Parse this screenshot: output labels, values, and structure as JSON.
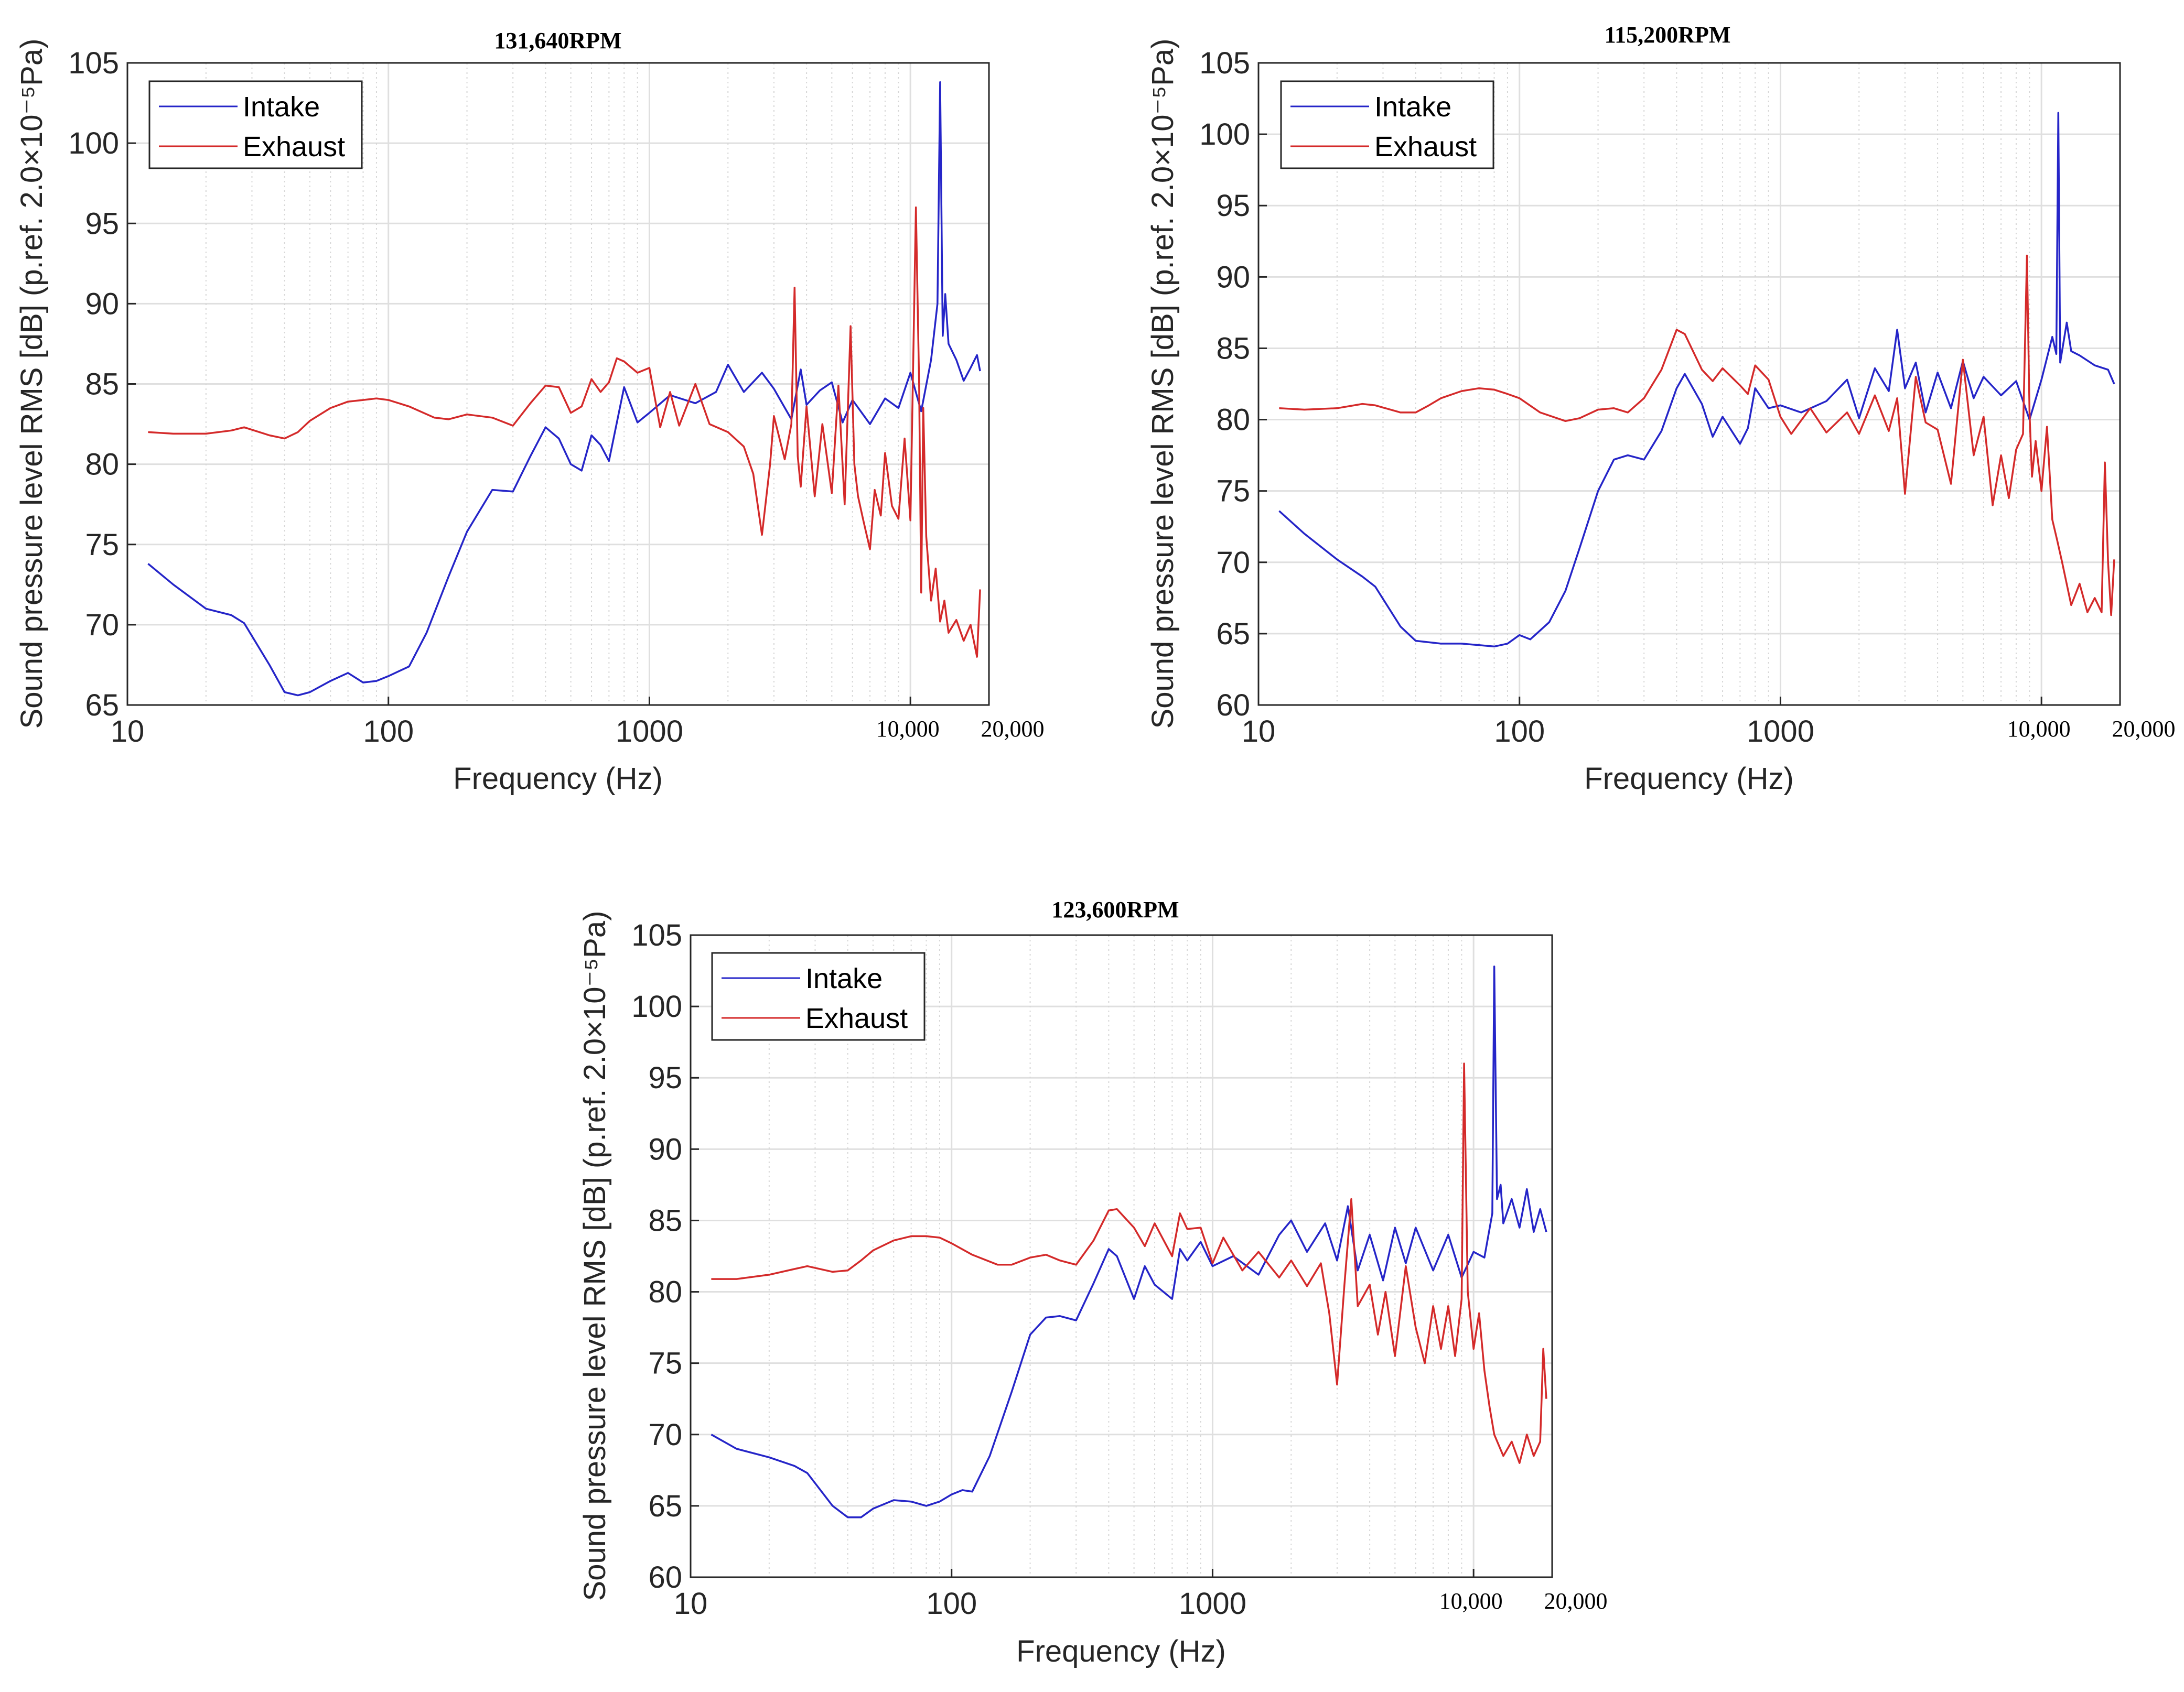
{
  "chart_data": [
    {
      "type": "line",
      "title": "131,640RPM",
      "xlabel": "Frequency (Hz)",
      "ylabel": "Sound pressure level RMS [dB] (p.ref. 2.0×10⁻⁵Pa)",
      "xscale": "log",
      "xlim": [
        10,
        20000
      ],
      "ylim": [
        65,
        105
      ],
      "x_ticks": [
        10,
        100,
        1000,
        10000,
        20000
      ],
      "x_tick_labels": [
        "10",
        "100",
        "1000",
        "10,000",
        "20,000"
      ],
      "y_ticks": [
        65,
        70,
        75,
        80,
        85,
        90,
        95,
        100,
        105
      ],
      "y_tick_labels": [
        "65",
        "70",
        "75",
        "80",
        "85",
        "90",
        "95",
        "100",
        "105"
      ],
      "grid": true,
      "legend_position": "top-left",
      "series": [
        {
          "name": "Intake",
          "color": "#2525c8",
          "x": [
            12,
            15,
            20,
            25,
            28,
            35,
            40,
            45,
            50,
            60,
            70,
            80,
            90,
            100,
            120,
            140,
            170,
            200,
            250,
            300,
            350,
            400,
            450,
            500,
            550,
            600,
            650,
            700,
            800,
            900,
            1000,
            1200,
            1500,
            1800,
            2000,
            2300,
            2700,
            3000,
            3500,
            3800,
            4000,
            4500,
            5000,
            5500,
            6000,
            7000,
            8000,
            9000,
            10000,
            11000,
            12000,
            12700,
            13000,
            13300,
            13600,
            14000,
            15000,
            16000,
            17000,
            18000,
            18500
          ],
          "y": [
            73.8,
            72.5,
            71.0,
            70.6,
            70.1,
            67.5,
            65.8,
            65.6,
            65.8,
            66.5,
            67.0,
            66.4,
            66.5,
            66.8,
            67.4,
            69.5,
            73.0,
            75.8,
            78.4,
            78.3,
            80.5,
            82.3,
            81.6,
            80.0,
            79.6,
            81.8,
            81.2,
            80.2,
            84.8,
            82.6,
            83.2,
            84.3,
            83.8,
            84.5,
            86.2,
            84.5,
            85.7,
            84.7,
            82.8,
            85.9,
            83.7,
            84.6,
            85.1,
            82.6,
            84.0,
            82.5,
            84.1,
            83.5,
            85.7,
            83.3,
            86.5,
            90.0,
            103.8,
            88.0,
            90.6,
            87.5,
            86.5,
            85.2,
            86.0,
            86.8,
            85.8
          ]
        },
        {
          "name": "Exhaust",
          "color": "#d42a2a",
          "x": [
            12,
            15,
            20,
            25,
            28,
            35,
            40,
            45,
            50,
            60,
            70,
            80,
            90,
            100,
            120,
            150,
            170,
            200,
            250,
            300,
            350,
            400,
            450,
            500,
            550,
            600,
            650,
            700,
            750,
            800,
            900,
            1000,
            1100,
            1200,
            1300,
            1500,
            1700,
            2000,
            2300,
            2500,
            2700,
            2900,
            3000,
            3300,
            3500,
            3600,
            3700,
            3800,
            4000,
            4300,
            4600,
            5000,
            5300,
            5600,
            5900,
            6100,
            6300,
            6600,
            7000,
            7300,
            7700,
            8000,
            8500,
            9000,
            9500,
            10000,
            10500,
            10800,
            11000,
            11200,
            11500,
            12000,
            12500,
            13000,
            13500,
            14000,
            15000,
            16000,
            17000,
            18000,
            18500
          ],
          "y": [
            82.0,
            81.9,
            81.9,
            82.1,
            82.3,
            81.8,
            81.6,
            82.0,
            82.7,
            83.5,
            83.9,
            84.0,
            84.1,
            84.0,
            83.6,
            82.9,
            82.8,
            83.1,
            82.9,
            82.4,
            83.8,
            84.9,
            84.8,
            83.2,
            83.6,
            85.3,
            84.5,
            85.1,
            86.6,
            86.4,
            85.7,
            86.0,
            82.3,
            84.5,
            82.4,
            85.0,
            82.5,
            82.0,
            81.1,
            79.4,
            75.6,
            80.0,
            83.0,
            80.3,
            82.5,
            91.0,
            80.5,
            78.6,
            83.6,
            78.0,
            82.5,
            78.2,
            84.9,
            77.5,
            88.6,
            80.0,
            78.0,
            76.5,
            74.7,
            78.4,
            76.8,
            80.7,
            77.4,
            76.6,
            81.6,
            76.5,
            96.0,
            85.0,
            72.0,
            83.5,
            75.5,
            71.5,
            73.5,
            70.2,
            71.5,
            69.5,
            70.3,
            69.0,
            70.0,
            68.0,
            72.2
          ]
        }
      ]
    },
    {
      "type": "line",
      "title": "115,200RPM",
      "xlabel": "Frequency (Hz)",
      "ylabel": "Sound pressure level RMS [dB] (p.ref. 2.0×10⁻⁵Pa)",
      "xscale": "log",
      "xlim": [
        10,
        20000
      ],
      "ylim": [
        60,
        105
      ],
      "x_ticks": [
        10,
        100,
        1000,
        10000,
        20000
      ],
      "x_tick_labels": [
        "10",
        "100",
        "1000",
        "10,000",
        "20,000"
      ],
      "y_ticks": [
        60,
        65,
        70,
        75,
        80,
        85,
        90,
        95,
        100,
        105
      ],
      "y_tick_labels": [
        "60",
        "65",
        "70",
        "75",
        "80",
        "85",
        "90",
        "95",
        "100",
        "105"
      ],
      "grid": true,
      "legend_position": "top-left",
      "series": [
        {
          "name": "Intake",
          "color": "#2525c8",
          "x": [
            12,
            15,
            20,
            25,
            28,
            35,
            40,
            50,
            60,
            70,
            80,
            90,
            100,
            110,
            130,
            150,
            170,
            200,
            230,
            260,
            300,
            350,
            400,
            430,
            500,
            550,
            600,
            700,
            750,
            800,
            900,
            1000,
            1200,
            1500,
            1800,
            2000,
            2300,
            2600,
            2800,
            3000,
            3300,
            3600,
            4000,
            4500,
            5000,
            5500,
            6000,
            7000,
            8000,
            9000,
            10000,
            11000,
            11400,
            11600,
            11800,
            12500,
            13000,
            14000,
            16000,
            18000,
            19000
          ],
          "y": [
            73.6,
            72.0,
            70.2,
            69.0,
            68.3,
            65.5,
            64.5,
            64.3,
            64.3,
            64.2,
            64.1,
            64.3,
            64.9,
            64.6,
            65.8,
            68.0,
            71.0,
            75.0,
            77.2,
            77.5,
            77.2,
            79.2,
            82.2,
            83.2,
            81.1,
            78.8,
            80.2,
            78.3,
            79.4,
            82.2,
            80.8,
            81.0,
            80.5,
            81.3,
            82.8,
            80.1,
            83.6,
            82.0,
            86.3,
            82.2,
            84.0,
            80.5,
            83.3,
            80.8,
            84.1,
            81.5,
            83.0,
            81.7,
            82.7,
            80.0,
            82.8,
            85.8,
            84.6,
            101.5,
            84.0,
            86.8,
            84.8,
            84.5,
            83.8,
            83.5,
            82.5
          ]
        },
        {
          "name": "Exhaust",
          "color": "#d42a2a",
          "x": [
            12,
            15,
            20,
            25,
            28,
            35,
            40,
            45,
            50,
            60,
            70,
            80,
            90,
            100,
            120,
            150,
            170,
            200,
            230,
            260,
            300,
            350,
            400,
            430,
            500,
            550,
            600,
            700,
            750,
            800,
            900,
            1000,
            1100,
            1300,
            1500,
            1800,
            2000,
            2300,
            2600,
            2800,
            3000,
            3300,
            3600,
            4000,
            4500,
            5000,
            5500,
            6000,
            6500,
            7000,
            7500,
            8000,
            8500,
            8800,
            9000,
            9200,
            9500,
            10000,
            10500,
            11000,
            11500,
            12000,
            13000,
            14000,
            15000,
            16000,
            17000,
            17500,
            18000,
            18500,
            19000
          ],
          "y": [
            80.8,
            80.7,
            80.8,
            81.1,
            81.0,
            80.5,
            80.5,
            81.0,
            81.5,
            82.0,
            82.2,
            82.1,
            81.8,
            81.5,
            80.5,
            79.9,
            80.1,
            80.7,
            80.8,
            80.5,
            81.5,
            83.5,
            86.3,
            86.0,
            83.5,
            82.7,
            83.6,
            82.4,
            81.8,
            83.8,
            82.8,
            80.2,
            79.0,
            80.8,
            79.1,
            80.5,
            79.0,
            81.7,
            79.2,
            81.5,
            74.8,
            83.0,
            79.8,
            79.3,
            75.5,
            84.2,
            77.5,
            80.2,
            74.0,
            77.5,
            74.5,
            77.9,
            79.0,
            91.5,
            80.5,
            76.0,
            78.5,
            75.0,
            79.5,
            73.0,
            71.5,
            70.0,
            67.0,
            68.5,
            66.5,
            67.5,
            66.5,
            77.0,
            70.0,
            66.3,
            70.2
          ]
        }
      ]
    },
    {
      "type": "line",
      "title": "123,600RPM",
      "xlabel": "Frequency (Hz)",
      "ylabel": "Sound pressure level RMS [dB] (p.ref. 2.0×10⁻⁵Pa)",
      "xscale": "log",
      "xlim": [
        10,
        20000
      ],
      "ylim": [
        60,
        105
      ],
      "x_ticks": [
        10,
        100,
        1000,
        10000,
        20000
      ],
      "x_tick_labels": [
        "10",
        "100",
        "1000",
        "10,000",
        "20,000"
      ],
      "y_ticks": [
        60,
        65,
        70,
        75,
        80,
        85,
        90,
        95,
        100,
        105
      ],
      "y_tick_labels": [
        "60",
        "65",
        "70",
        "75",
        "80",
        "85",
        "90",
        "95",
        "100",
        "105"
      ],
      "grid": true,
      "legend_position": "top-left",
      "series": [
        {
          "name": "Intake",
          "color": "#2525c8",
          "x": [
            12,
            15,
            20,
            25,
            28,
            35,
            40,
            45,
            50,
            60,
            70,
            80,
            90,
            100,
            110,
            120,
            140,
            170,
            200,
            230,
            260,
            300,
            350,
            400,
            430,
            500,
            550,
            600,
            700,
            750,
            800,
            900,
            1000,
            1200,
            1500,
            1800,
            2000,
            2300,
            2700,
            3000,
            3300,
            3600,
            4000,
            4500,
            5000,
            5500,
            6000,
            7000,
            8000,
            9000,
            10000,
            11000,
            11800,
            12000,
            12300,
            12700,
            13000,
            14000,
            15000,
            16000,
            17000,
            18000,
            19000
          ],
          "y": [
            70.0,
            69.0,
            68.4,
            67.8,
            67.3,
            65.0,
            64.2,
            64.2,
            64.8,
            65.4,
            65.3,
            65.0,
            65.3,
            65.8,
            66.1,
            66.0,
            68.5,
            73.0,
            77.0,
            78.2,
            78.3,
            78.0,
            80.6,
            83.0,
            82.5,
            79.5,
            81.8,
            80.5,
            79.5,
            83.0,
            82.2,
            83.5,
            81.8,
            82.5,
            81.2,
            84.0,
            85.0,
            82.8,
            84.8,
            82.2,
            86.0,
            81.5,
            84.0,
            80.8,
            84.5,
            82.0,
            84.5,
            81.5,
            84.0,
            81.0,
            82.8,
            82.4,
            85.5,
            102.8,
            86.5,
            87.5,
            84.8,
            86.5,
            84.5,
            87.2,
            84.2,
            85.8,
            84.2
          ]
        },
        {
          "name": "Exhaust",
          "color": "#d42a2a",
          "x": [
            12,
            15,
            20,
            25,
            28,
            35,
            40,
            45,
            50,
            60,
            70,
            80,
            90,
            100,
            120,
            150,
            170,
            200,
            230,
            260,
            300,
            350,
            400,
            430,
            500,
            550,
            600,
            700,
            750,
            800,
            900,
            1000,
            1100,
            1300,
            1500,
            1800,
            2000,
            2300,
            2600,
            2800,
            3000,
            3200,
            3400,
            3600,
            4000,
            4300,
            4600,
            5000,
            5500,
            6000,
            6500,
            7000,
            7500,
            8000,
            8500,
            9000,
            9200,
            9500,
            10000,
            10500,
            11000,
            11500,
            12000,
            13000,
            14000,
            15000,
            16000,
            17000,
            18000,
            18500,
            19000
          ],
          "y": [
            80.9,
            80.9,
            81.2,
            81.6,
            81.8,
            81.4,
            81.5,
            82.2,
            82.9,
            83.6,
            83.9,
            83.9,
            83.8,
            83.4,
            82.6,
            81.9,
            81.9,
            82.4,
            82.6,
            82.2,
            81.9,
            83.6,
            85.7,
            85.8,
            84.5,
            83.2,
            84.8,
            82.5,
            85.5,
            84.4,
            84.5,
            82.0,
            83.8,
            81.5,
            82.8,
            81.0,
            82.2,
            80.4,
            82.0,
            78.5,
            73.5,
            80.5,
            86.5,
            79.0,
            80.5,
            77.0,
            80.0,
            75.5,
            81.8,
            77.5,
            75.0,
            79.0,
            76.0,
            79.0,
            75.5,
            79.5,
            96.0,
            80.0,
            76.0,
            78.5,
            74.5,
            72.0,
            70.0,
            68.5,
            69.5,
            68.0,
            70.0,
            68.5,
            69.5,
            76.0,
            72.5
          ]
        }
      ]
    }
  ]
}
